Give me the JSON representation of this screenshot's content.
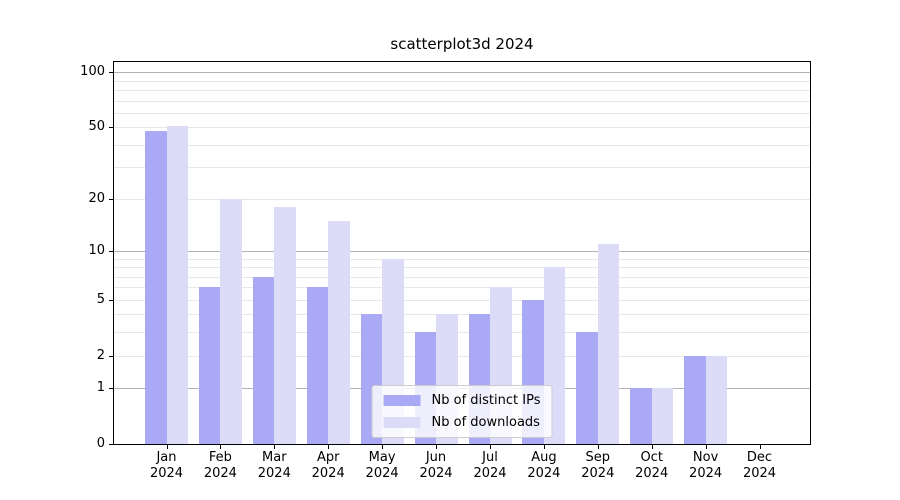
{
  "title": "scatterplot3d 2024",
  "chart_data": {
    "type": "bar",
    "title": "scatterplot3d 2024",
    "categories": [
      "Jan 2024",
      "Feb 2024",
      "Mar 2024",
      "Apr 2024",
      "May 2024",
      "Jun 2024",
      "Jul 2024",
      "Aug 2024",
      "Sep 2024",
      "Oct 2024",
      "Nov 2024",
      "Dec 2024"
    ],
    "series": [
      {
        "name": "Nb of distinct IPs",
        "color": "#a9a9f5",
        "values": [
          48,
          6,
          7,
          6,
          4,
          3,
          4,
          5,
          3,
          1,
          2,
          0
        ]
      },
      {
        "name": "Nb of downloads",
        "color": "#dcdcf9",
        "values": [
          51,
          20,
          18,
          15,
          9,
          4,
          6,
          8,
          11,
          1,
          2,
          0
        ]
      }
    ],
    "xlabel": "",
    "ylabel": "",
    "yscale": "log1p",
    "ylim": [
      0,
      113.8
    ],
    "yticks": [
      100,
      50,
      20,
      10,
      5,
      2,
      1,
      0
    ],
    "grid": "horizontal",
    "grid_major": [
      1,
      10,
      100
    ],
    "grid_minor": [
      2,
      3,
      4,
      5,
      6,
      7,
      8,
      9,
      20,
      30,
      40,
      50,
      60,
      70,
      80,
      90
    ],
    "legend": {
      "position": "lower-center",
      "items": [
        "Nb of distinct IPs",
        "Nb of downloads"
      ]
    }
  }
}
